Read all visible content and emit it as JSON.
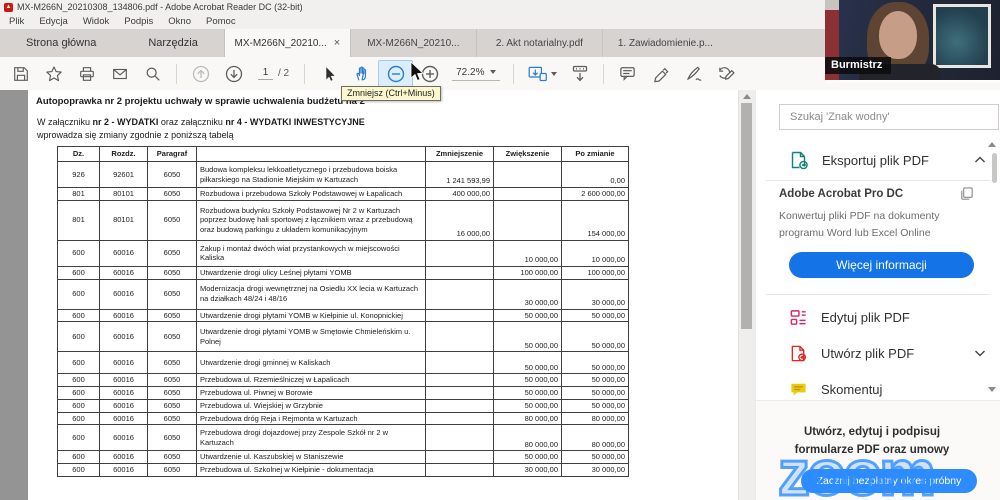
{
  "window": {
    "title": "MX-M266N_20210308_134806.pdf - Adobe Acrobat Reader DC (32-bit)",
    "menus": [
      "Plik",
      "Edycja",
      "Widok",
      "Podpis",
      "Okno",
      "Pomoc"
    ]
  },
  "tabbar": {
    "home": "Strona główna",
    "tools": "Narzędzia",
    "doc_tabs": [
      {
        "label": "MX-M266N_20210...",
        "close": "×"
      },
      {
        "label": "MX-M266N_20210..."
      },
      {
        "label": "2. Akt notarialny.pdf"
      },
      {
        "label": "1. Zawiadomienie.p..."
      }
    ]
  },
  "toolbar": {
    "page_current": "1",
    "page_total": "/ 2",
    "zoom_level": "72.2%"
  },
  "tooltip": {
    "text": "Zmniejsz (Ctrl+Minus)"
  },
  "video": {
    "label": "Burmistrz"
  },
  "document": {
    "heading": "Autopoprawka nr 2 projektu uchwały w sprawie uchwalenia budżetu na 2",
    "para": {
      "a": "W załączniku ",
      "b": "nr 2 - WYDATKI",
      "c": " oraz załączniku ",
      "d": "nr 4 - WYDATKI INWESTYCYJNE",
      "line2": "wprowadza się zmiany zgodnie z poniższą tabelą"
    },
    "table": {
      "headers": [
        "Dz.",
        "Rozdz.",
        "Paragraf",
        "",
        "Zmniejszenie",
        "Zwiększenie",
        "Po zmianie"
      ],
      "rows": [
        [
          "926",
          "92601",
          "6050",
          "Budowa kompleksu lekkoatletycznego i przebudowa boiska piłkarskiego na Stadionie Miejskim w Kartuzach",
          "1 241 593,99",
          "",
          "0,00"
        ],
        [
          "801",
          "80101",
          "6050",
          "Rozbudowa i przebudowa Szkoły Podstawowej w Łapalicach",
          "400 000,00",
          "",
          "2 600 000,00"
        ],
        [
          "801",
          "80101",
          "6050",
          "Rozbudowa budynku Szkoły Podstawowej Nr 2 w Kartuzach poprzez budowę hali sportowej z łącznikiem wraz z przebudową oraz budową parkingu z układem komunikacyjnym",
          "16 000,00",
          "",
          "154 000,00"
        ],
        [
          "600",
          "60016",
          "6050",
          "Zakup i montaż dwóch wiat przystankowych w miejscowości Kaliska",
          "",
          "10 000,00",
          "10 000,00"
        ],
        [
          "600",
          "60016",
          "6050",
          "Utwardzenie drogi ulicy Leśnej płytami YOMB",
          "",
          "100 000,00",
          "100 000,00"
        ],
        [
          "600",
          "60016",
          "6050",
          "Modernizacja drogi wewnętrznej na Osiedlu XX lecia w Kartuzach na działkach 48/24 i 48/16",
          "",
          "30 000,00",
          "30 000,00"
        ],
        [
          "600",
          "60016",
          "6050",
          "Utwardzenie drogi płytami YOMB w Kiełpinie ul. Konopnickiej",
          "",
          "50 000,00",
          "50 000,00"
        ],
        [
          "600",
          "60016",
          "6050",
          "Utwardzenie drogi płytami YOMB w Smętowie Chmieleńskim u. Polnej",
          "",
          "50 000,00",
          "50 000,00"
        ],
        [
          "600",
          "60016",
          "6050",
          "Utwardzenie drogi gminnej w Kaliskach",
          "",
          "50 000,00",
          "50 000,00"
        ],
        [
          "600",
          "60016",
          "6050",
          "Przebudowa ul. Rzemieślniczej w Łapalicach",
          "",
          "50 000,00",
          "50 000,00"
        ],
        [
          "600",
          "60016",
          "6050",
          "Przebudowa ul. Piwnej w Borowie",
          "",
          "50 000,00",
          "50 000,00"
        ],
        [
          "600",
          "60016",
          "6050",
          "Przebudowa ul. Wiejskiej w Grzybnie",
          "",
          "50 000,00",
          "50 000,00"
        ],
        [
          "600",
          "60016",
          "6050",
          "Przebudowa dróg Reja i Rejmonta w Kartuzach",
          "",
          "80 000,00",
          "80 000,00"
        ],
        [
          "600",
          "60016",
          "6050",
          "Przebudowa drogi dojazdowej przy Zespole Szkół nr 2 w Kartuzach",
          "",
          "80 000,00",
          "80 000,00"
        ],
        [
          "600",
          "60016",
          "6050",
          "Utwardzenie ul. Kaszubskiej w Staniszewie",
          "",
          "50 000,00",
          "50 000,00"
        ],
        [
          "600",
          "60016",
          "6050",
          "Przebudowa ul. Szkolnej w Kiełpinie - dokumentacja",
          "",
          "30 000,00",
          "30 000,00"
        ]
      ]
    }
  },
  "sidebar": {
    "search_placeholder": "Szukaj 'Znak wodny'",
    "export_label": "Eksportuj plik PDF",
    "promo": {
      "title": "Adobe Acrobat Pro DC",
      "body_line1": "Konwertuj pliki PDF na dokumenty",
      "body_line2": "programu Word lub Excel Online",
      "button": "Więcej informacji"
    },
    "edit_label": "Edytuj plik PDF",
    "create_label": "Utwórz plik PDF",
    "comment_label": "Skomentuj",
    "footer_line1": "Utwórz, edytuj i podpisuj",
    "footer_line2": "formularze PDF oraz umowy",
    "zoom_logo": "zoom",
    "zoom_button": "Zacznij bezpłatny okres próbny"
  },
  "colors": {
    "accent_blue": "#1473e6",
    "zoom_blue": "#2d8cff",
    "adobe_red": "#e1251b",
    "export_teal": "#0d8276",
    "edit_pink": "#d6246e",
    "comment_yellow": "#e7c000"
  }
}
